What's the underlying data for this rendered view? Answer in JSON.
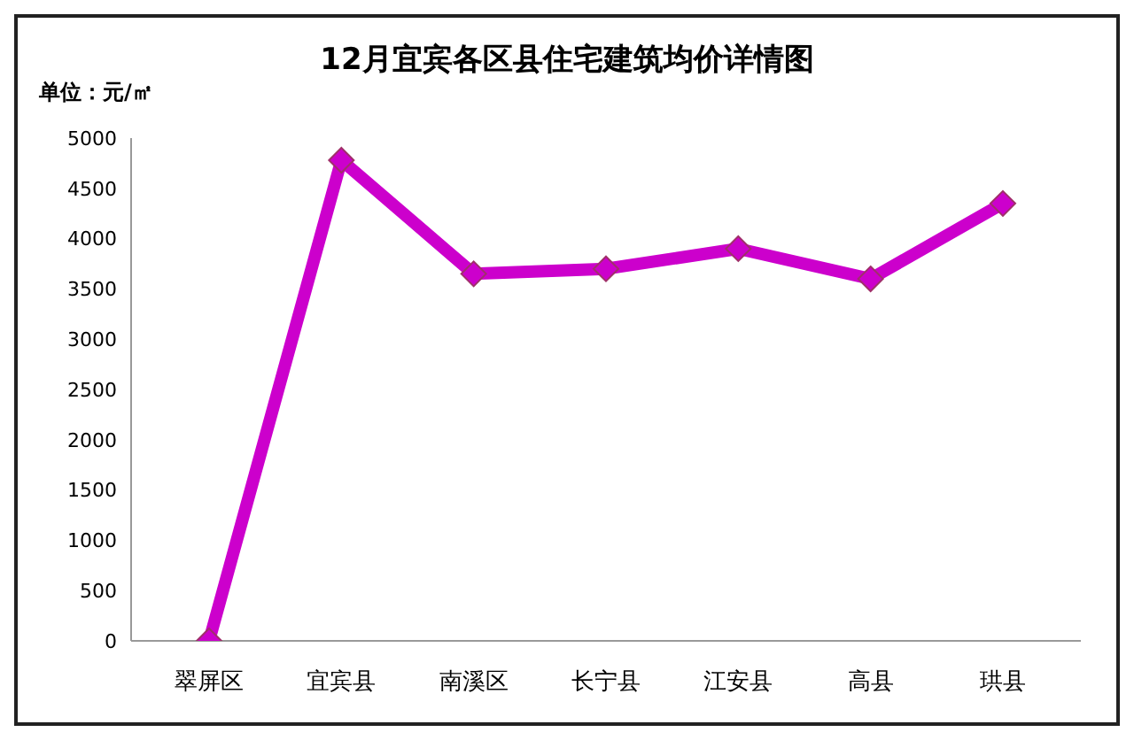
{
  "chart_data": {
    "type": "line",
    "title": "12月宜宾各区县住宅建筑均价详情图",
    "ylabel": "单位：元/㎡",
    "categories": [
      "翠屏区",
      "宜宾县",
      "南溪区",
      "长宁县",
      "江安县",
      "高县",
      "珙县"
    ],
    "series": [
      {
        "color": "#cc00cc",
        "values": [
          0,
          4780,
          3650,
          3700,
          3900,
          3600,
          4350
        ]
      }
    ],
    "ylim": [
      0,
      5000
    ],
    "yticks": [
      0,
      500,
      1000,
      1500,
      2000,
      2500,
      3000,
      3500,
      4000,
      4500,
      5000
    ],
    "grid": false,
    "legend": false,
    "marker": "diamond",
    "line_style": "solid"
  }
}
